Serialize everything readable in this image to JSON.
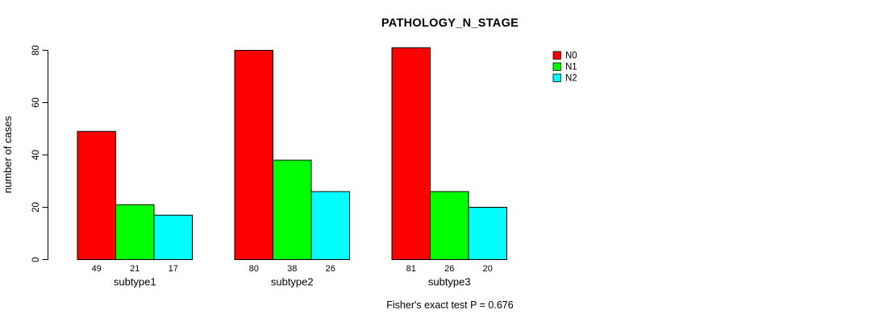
{
  "chart_data": {
    "type": "bar",
    "title": "PATHOLOGY_N_STAGE",
    "ylabel": "number of cases",
    "xlabel": "",
    "categories": [
      "subtype1",
      "subtype2",
      "subtype3"
    ],
    "series": [
      {
        "name": "N0",
        "color": "#ff0000",
        "values": [
          49,
          80,
          81
        ]
      },
      {
        "name": "N1",
        "color": "#00ff00",
        "values": [
          21,
          38,
          26
        ]
      },
      {
        "name": "N2",
        "color": "#00ffff",
        "values": [
          17,
          26,
          20
        ]
      }
    ],
    "bar_value_labels": [
      [
        "49",
        "21",
        "17"
      ],
      [
        "80",
        "38",
        "26"
      ],
      [
        "81",
        "26",
        "20"
      ]
    ],
    "yticks": [
      "0",
      "20",
      "40",
      "60",
      "80"
    ],
    "ylim": [
      0,
      80
    ],
    "grid": false,
    "legend_position": "top-right",
    "bar_border_color": "#000000",
    "annotation": "Fisher's exact test P = 0.676"
  }
}
